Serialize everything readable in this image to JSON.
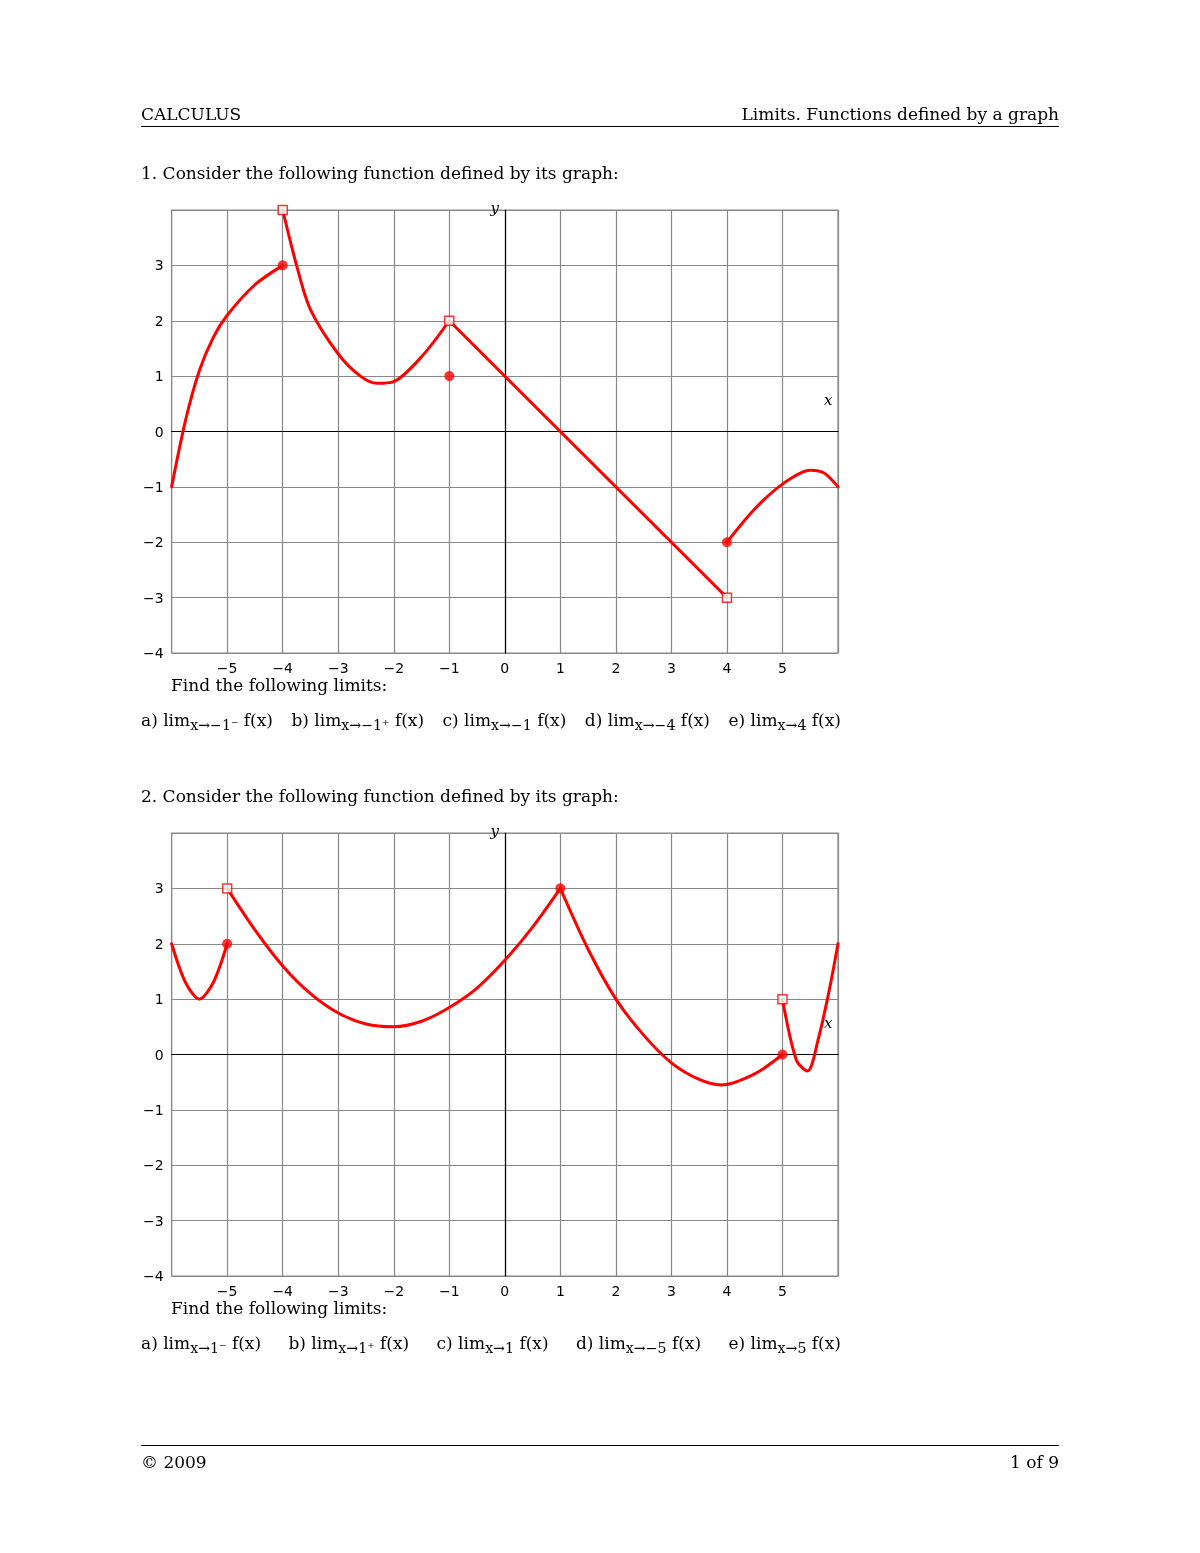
{
  "chart_data": [
    {
      "type": "line",
      "title": "1. Consider the following function defined by its graph:",
      "xlabel": "x",
      "ylabel": "y",
      "xlim": [
        -6,
        6
      ],
      "xticks": [
        {
          "value": -5,
          "label": "−5"
        },
        {
          "value": -4,
          "label": "−4"
        },
        {
          "value": -3,
          "label": "−3"
        },
        {
          "value": -2,
          "label": "−2"
        },
        {
          "value": -1,
          "label": "−1"
        },
        0,
        1,
        2,
        3,
        4,
        5
      ],
      "ylim": [
        -4,
        4
      ],
      "yticks": [
        {
          "value": -4,
          "label": "−4"
        },
        {
          "value": -3,
          "label": "−3"
        },
        {
          "value": -2,
          "label": "−2"
        },
        {
          "value": -1,
          "label": "−1"
        },
        0,
        1,
        2,
        3
      ],
      "grid": true,
      "series": [
        {
          "type": "line",
          "marker": "none",
          "color": "#ff0000",
          "x": [
            -6,
            -5.75,
            -5.5,
            -5.25,
            -5,
            -4.5,
            -4
          ],
          "values": [
            -1,
            0.2,
            1.1,
            1.7,
            2.1,
            2.65,
            3
          ]
        },
        {
          "type": "line",
          "marker": "none",
          "color": "#ff0000",
          "x": [
            -4,
            -3.75,
            -3.5,
            -3,
            -2.6,
            -2.3,
            -2,
            -1.5,
            -1
          ],
          "values": [
            4,
            3.0,
            2.2,
            1.4,
            1.0,
            0.87,
            0.9,
            1.35,
            2
          ]
        },
        {
          "type": "line",
          "marker": "none",
          "color": "#ff0000",
          "x": [
            -1,
            4
          ],
          "values": [
            2,
            -3
          ]
        },
        {
          "type": "line",
          "marker": "none",
          "color": "#ff0000",
          "x": [
            4,
            4.5,
            5,
            5.5,
            5.75,
            6
          ],
          "values": [
            -2,
            -1.4,
            -0.95,
            -0.7,
            -0.75,
            -1
          ]
        },
        {
          "type": "scatter",
          "marker": "circle",
          "color": "#ff0000",
          "x": [
            -4,
            -1,
            4
          ],
          "values": [
            3,
            1,
            -2
          ]
        },
        {
          "type": "scatter",
          "marker": "square",
          "color": "#ff0000",
          "x": [
            -4,
            -1,
            4
          ],
          "values": [
            4,
            2,
            -3
          ]
        }
      ],
      "annotations": [
        "CALCULUS",
        "Limits. Functions defined by a graph",
        "Find the following limits:",
        "a) lim$_{x→−1⁻}$ f(x)",
        "b) lim$_{x→−1⁺}$ f(x)",
        "c) lim$_{x→−1}$ f(x)",
        "d) lim$_{x→−4}$ f(x)",
        "e) lim$_{x→4}$ f(x)"
      ]
    },
    {
      "type": "line",
      "title": "2. Consider the following function defined by its graph:",
      "xlabel": "x",
      "ylabel": "y",
      "xlim": [
        -6,
        6
      ],
      "xticks": [
        {
          "value": -5,
          "label": "−5"
        },
        {
          "value": -4,
          "label": "−4"
        },
        {
          "value": -3,
          "label": "−3"
        },
        {
          "value": -2,
          "label": "−2"
        },
        {
          "value": -1,
          "label": "−1"
        },
        0,
        1,
        2,
        3,
        4,
        5
      ],
      "ylim": [
        -4,
        4
      ],
      "yticks": [
        {
          "value": -4,
          "label": "−4"
        },
        {
          "value": -3,
          "label": "−3"
        },
        {
          "value": -2,
          "label": "−2"
        },
        {
          "value": -1,
          "label": "−1"
        },
        0,
        1,
        2,
        3
      ],
      "grid": true,
      "series": [
        {
          "type": "line",
          "marker": "none",
          "color": "#ff0000",
          "x": [
            -6,
            -5.75,
            -5.5,
            -5.25,
            -5
          ],
          "values": [
            2,
            1.3,
            1.0,
            1.3,
            2
          ]
        },
        {
          "type": "line",
          "marker": "none",
          "color": "#ff0000",
          "x": [
            -5,
            -4.5,
            -4,
            -3.5,
            -3,
            -2.5,
            -2,
            -1.5,
            -1,
            -0.5,
            0,
            0.5,
            1
          ],
          "values": [
            3,
            2.25,
            1.6,
            1.1,
            0.75,
            0.55,
            0.5,
            0.6,
            0.85,
            1.2,
            1.7,
            2.3,
            3
          ]
        },
        {
          "type": "line",
          "marker": "none",
          "color": "#ff0000",
          "x": [
            1,
            1.5,
            2,
            2.5,
            3,
            3.5,
            3.9,
            4.5,
            5
          ],
          "values": [
            3,
            1.9,
            1.0,
            0.35,
            -0.15,
            -0.45,
            -0.55,
            -0.35,
            0
          ]
        },
        {
          "type": "line",
          "marker": "none",
          "color": "#ff0000",
          "x": [
            5,
            5.25,
            5.45,
            5.65,
            5.85,
            6
          ],
          "values": [
            1,
            -0.1,
            -0.3,
            0.3,
            1.2,
            2
          ]
        },
        {
          "type": "scatter",
          "marker": "circle",
          "color": "#ff0000",
          "x": [
            -5,
            1,
            5
          ],
          "values": [
            2,
            3,
            0
          ]
        },
        {
          "type": "scatter",
          "marker": "square",
          "color": "#ff0000",
          "x": [
            -5,
            5
          ],
          "values": [
            3,
            1
          ]
        }
      ],
      "annotations": [
        "Find the following limits:",
        "a) lim$_{x→1⁻}$ f(x)",
        "b) lim$_{x→1⁺}$ f(x)",
        "c) lim$_{x→1}$ f(x)",
        "d) lim$_{x→−5}$ f(x)",
        "e) lim$_{x→5}$ f(x)",
        "© 2009",
        "1 of 9"
      ]
    }
  ]
}
